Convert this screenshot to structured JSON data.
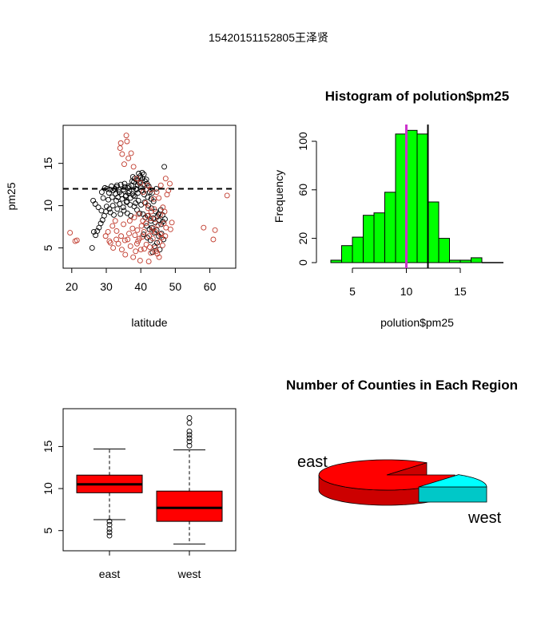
{
  "page_title": "15420151152805王泽贤",
  "chart_data": [
    {
      "type": "scatter",
      "title": "",
      "xlabel": "latitude",
      "ylabel": "pm25",
      "xlim": [
        17.5,
        67.5
      ],
      "ylim": [
        2.6,
        19.5
      ],
      "x_ticks": [
        "20",
        "30",
        "40",
        "50",
        "60"
      ],
      "y_ticks": [
        "5",
        "10",
        "15"
      ],
      "reference_line_y": 12,
      "series": [
        {
          "name": "",
          "color": "#000000",
          "points": [
            [
              30.2,
              12.0
            ],
            [
              30.8,
              11.5
            ],
            [
              31.5,
              12.3
            ],
            [
              32.0,
              11.8
            ],
            [
              32.5,
              12.0
            ],
            [
              33.0,
              12.2
            ],
            [
              33.4,
              11.0
            ],
            [
              33.8,
              11.6
            ],
            [
              34.2,
              12.5
            ],
            [
              34.6,
              10.8
            ],
            [
              35.0,
              11.9
            ],
            [
              35.3,
              12.6
            ],
            [
              35.7,
              11.2
            ],
            [
              36.0,
              10.5
            ],
            [
              36.3,
              12.1
            ],
            [
              36.7,
              11.7
            ],
            [
              37.0,
              10.9
            ],
            [
              37.3,
              12.4
            ],
            [
              37.6,
              11.4
            ],
            [
              38.0,
              12.8
            ],
            [
              38.3,
              11.1
            ],
            [
              38.6,
              12.0
            ],
            [
              39.0,
              13.0
            ],
            [
              39.2,
              11.5
            ],
            [
              39.5,
              12.7
            ],
            [
              39.8,
              13.5
            ],
            [
              40.0,
              12.2
            ],
            [
              40.2,
              11.8
            ],
            [
              40.5,
              13.2
            ],
            [
              40.7,
              12.5
            ],
            [
              41.0,
              11.3
            ],
            [
              41.2,
              12.9
            ],
            [
              41.5,
              11.9
            ],
            [
              41.8,
              12.6
            ],
            [
              42.0,
              11.0
            ],
            [
              42.3,
              12.3
            ],
            [
              42.6,
              11.6
            ],
            [
              43.0,
              10.8
            ],
            [
              43.3,
              11.5
            ],
            [
              43.7,
              10.5
            ],
            [
              39.4,
              13.8
            ],
            [
              39.9,
              13.3
            ],
            [
              40.4,
              13.9
            ],
            [
              39.1,
              12.4
            ],
            [
              38.8,
              11.9
            ],
            [
              37.9,
              11.2
            ],
            [
              36.9,
              10.1
            ],
            [
              35.9,
              10.4
            ],
            [
              34.9,
              9.8
            ],
            [
              33.9,
              10.2
            ],
            [
              32.9,
              10.6
            ],
            [
              31.9,
              10.0
            ],
            [
              30.9,
              9.6
            ],
            [
              29.9,
              9.3
            ],
            [
              29.4,
              8.8
            ],
            [
              28.9,
              8.3
            ],
            [
              28.4,
              7.9
            ],
            [
              27.9,
              7.4
            ],
            [
              27.4,
              7.0
            ],
            [
              26.9,
              6.5
            ],
            [
              26.4,
              6.9
            ],
            [
              25.9,
              5.0
            ],
            [
              26.2,
              10.6
            ],
            [
              26.8,
              10.2
            ],
            [
              27.7,
              9.8
            ],
            [
              28.6,
              9.4
            ],
            [
              38.1,
              9.9
            ],
            [
              38.9,
              9.5
            ],
            [
              39.7,
              9.1
            ],
            [
              40.6,
              9.0
            ],
            [
              41.3,
              8.6
            ],
            [
              42.1,
              8.8
            ],
            [
              42.9,
              8.2
            ],
            [
              43.6,
              8.5
            ],
            [
              44.2,
              8.0
            ],
            [
              44.8,
              8.7
            ],
            [
              45.3,
              8.3
            ],
            [
              45.9,
              7.8
            ],
            [
              46.4,
              8.1
            ],
            [
              41.7,
              7.6
            ],
            [
              42.5,
              7.2
            ],
            [
              43.2,
              7.4
            ],
            [
              43.9,
              6.8
            ],
            [
              44.6,
              7.1
            ],
            [
              45.2,
              6.4
            ],
            [
              46.0,
              6.7
            ],
            [
              46.6,
              6.0
            ],
            [
              44.0,
              5.2
            ],
            [
              44.7,
              5.6
            ],
            [
              45.5,
              4.8
            ],
            [
              42.8,
              5.9
            ],
            [
              43.4,
              4.5
            ],
            [
              41.9,
              6.2
            ],
            [
              40.8,
              6.6
            ],
            [
              46.8,
              14.6
            ],
            [
              44.5,
              12.0
            ],
            [
              36.5,
              12.3
            ],
            [
              37.5,
              12.9
            ],
            [
              35.5,
              12.2
            ],
            [
              34.4,
              11.3
            ],
            [
              33.6,
              11.9
            ],
            [
              32.7,
              11.4
            ],
            [
              31.7,
              11.0
            ],
            [
              30.6,
              10.7
            ],
            [
              30.1,
              9.9
            ],
            [
              31.2,
              9.2
            ],
            [
              32.2,
              8.9
            ],
            [
              33.2,
              9.6
            ],
            [
              34.1,
              9.0
            ],
            [
              35.1,
              9.4
            ],
            [
              36.1,
              9.1
            ],
            [
              37.1,
              8.8
            ],
            [
              38.5,
              10.3
            ],
            [
              39.3,
              10.6
            ],
            [
              40.1,
              10.1
            ],
            [
              41.1,
              10.4
            ],
            [
              42.2,
              10.0
            ],
            [
              43.1,
              9.7
            ],
            [
              44.3,
              9.3
            ],
            [
              45.1,
              9.0
            ],
            [
              45.8,
              9.5
            ],
            [
              46.3,
              8.9
            ],
            [
              47.0,
              8.4
            ],
            [
              38.2,
              13.2
            ],
            [
              40.9,
              13.7
            ],
            [
              41.6,
              13.1
            ],
            [
              37.7,
              13.4
            ],
            [
              36.4,
              11.5
            ],
            [
              35.6,
              11.1
            ],
            [
              33.1,
              12.4
            ],
            [
              31.1,
              11.9
            ],
            [
              29.6,
              12.1
            ],
            [
              28.7,
              11.6
            ],
            [
              29.1,
              10.9
            ]
          ]
        },
        {
          "name": "",
          "color": "#c0392b",
          "points": [
            [
              19.5,
              6.8
            ],
            [
              21.0,
              5.8
            ],
            [
              21.5,
              5.9
            ],
            [
              31.2,
              5.6
            ],
            [
              32.0,
              5.0
            ],
            [
              33.5,
              5.5
            ],
            [
              34.5,
              4.8
            ],
            [
              35.5,
              4.2
            ],
            [
              36.2,
              6.0
            ],
            [
              37.0,
              5.2
            ],
            [
              37.8,
              3.9
            ],
            [
              38.5,
              4.6
            ],
            [
              39.2,
              5.8
            ],
            [
              39.8,
              3.5
            ],
            [
              40.4,
              6.3
            ],
            [
              41.0,
              4.9
            ],
            [
              41.6,
              5.4
            ],
            [
              42.3,
              3.4
            ],
            [
              42.9,
              4.4
            ],
            [
              43.5,
              6.1
            ],
            [
              44.2,
              5.0
            ],
            [
              44.8,
              4.3
            ],
            [
              45.4,
              5.7
            ],
            [
              46.0,
              6.2
            ],
            [
              46.7,
              7.9
            ],
            [
              47.3,
              7.4
            ],
            [
              46.4,
              9.8
            ],
            [
              47.6,
              11.3
            ],
            [
              48.0,
              11.8
            ],
            [
              47.2,
              13.2
            ],
            [
              48.4,
              12.6
            ],
            [
              49.0,
              8.0
            ],
            [
              48.6,
              7.2
            ],
            [
              45.8,
              12.4
            ],
            [
              45.2,
              10.9
            ],
            [
              44.6,
              11.6
            ],
            [
              43.9,
              9.6
            ],
            [
              34.0,
              16.8
            ],
            [
              34.6,
              16.1
            ],
            [
              35.8,
              18.3
            ],
            [
              36.4,
              15.6
            ],
            [
              37.2,
              16.2
            ],
            [
              36.0,
              17.6
            ],
            [
              34.2,
              17.4
            ],
            [
              35.2,
              14.9
            ],
            [
              37.9,
              14.6
            ],
            [
              38.8,
              13.2
            ],
            [
              39.9,
              12.7
            ],
            [
              40.7,
              11.6
            ],
            [
              41.4,
              10.3
            ],
            [
              42.1,
              9.7
            ],
            [
              42.8,
              8.5
            ],
            [
              43.6,
              7.3
            ],
            [
              44.3,
              6.9
            ],
            [
              45.0,
              7.7
            ],
            [
              45.7,
              6.6
            ],
            [
              46.3,
              5.3
            ],
            [
              47.1,
              6.4
            ],
            [
              36.8,
              8.2
            ],
            [
              37.6,
              7.3
            ],
            [
              38.3,
              6.5
            ],
            [
              39.0,
              7.1
            ],
            [
              39.6,
              6.1
            ],
            [
              40.2,
              7.6
            ],
            [
              40.9,
              6.9
            ],
            [
              41.5,
              7.9
            ],
            [
              42.4,
              6.4
            ],
            [
              43.2,
              7.0
            ],
            [
              58.2,
              7.4
            ],
            [
              61.5,
              7.1
            ],
            [
              61.0,
              6.0
            ],
            [
              65.0,
              11.2
            ],
            [
              33.0,
              7.0
            ],
            [
              34.3,
              6.4
            ],
            [
              35.0,
              7.8
            ],
            [
              36.6,
              6.7
            ],
            [
              38.1,
              8.6
            ],
            [
              39.4,
              9.0
            ],
            [
              40.6,
              8.2
            ],
            [
              41.9,
              8.8
            ],
            [
              43.0,
              9.3
            ],
            [
              44.0,
              8.4
            ],
            [
              45.6,
              8.9
            ],
            [
              46.9,
              9.3
            ],
            [
              32.6,
              8.2
            ],
            [
              31.8,
              7.6
            ],
            [
              30.5,
              6.9
            ],
            [
              29.8,
              6.4
            ],
            [
              30.9,
              5.8
            ],
            [
              32.9,
              6.0
            ],
            [
              35.4,
              5.9
            ],
            [
              38.9,
              5.5
            ],
            [
              40.0,
              4.8
            ],
            [
              42.6,
              5.1
            ],
            [
              44.5,
              4.6
            ],
            [
              45.3,
              3.9
            ],
            [
              43.8,
              10.8
            ],
            [
              42.9,
              11.9
            ],
            [
              41.9,
              12.4
            ]
          ]
        }
      ]
    },
    {
      "type": "bar",
      "title": "Histogram of polution$pm25",
      "xlabel": "polution$pm25",
      "ylabel": "Frequency",
      "xlim": [
        3,
        19
      ],
      "ylim": [
        0,
        113
      ],
      "x_ticks": [
        "5",
        "10",
        "15"
      ],
      "y_ticks": [
        "0",
        "20",
        "60",
        "100"
      ],
      "bin_width": 1,
      "bins_start": [
        3,
        4,
        5,
        6,
        7,
        8,
        9,
        10,
        11,
        12,
        13,
        14,
        15,
        16,
        17,
        18
      ],
      "values": [
        2,
        14,
        21,
        39,
        41,
        58,
        106,
        109,
        106,
        50,
        20,
        2,
        2,
        4,
        0,
        0
      ],
      "bar_color": "#00ff00",
      "vlines": [
        {
          "x": 10,
          "color": "#cc33cc"
        },
        {
          "x": 12,
          "color": "#000000"
        }
      ]
    },
    {
      "type": "box",
      "title": "",
      "categories": [
        "east",
        "west"
      ],
      "ylim": [
        2.6,
        19.5
      ],
      "y_ticks": [
        "5",
        "10",
        "15"
      ],
      "box_color": "#ff0000",
      "boxes": [
        {
          "name": "east",
          "whisker_low": 6.3,
          "q1": 9.5,
          "median": 10.5,
          "q3": 11.6,
          "whisker_high": 14.7,
          "outliers": [
            4.4,
            4.8,
            5.2,
            5.7,
            6.1
          ]
        },
        {
          "name": "west",
          "whisker_low": 3.4,
          "q1": 6.1,
          "median": 7.7,
          "q3": 9.7,
          "whisker_high": 14.6,
          "outliers": [
            15.1,
            15.6,
            16.0,
            16.4,
            16.8,
            17.8,
            18.4
          ]
        }
      ]
    },
    {
      "type": "pie",
      "title": "Number of Counties in Each Region",
      "categories": [
        "east",
        "west"
      ],
      "values": [
        85,
        15
      ],
      "colors": [
        "#ff0000",
        "#00ffff"
      ]
    }
  ]
}
